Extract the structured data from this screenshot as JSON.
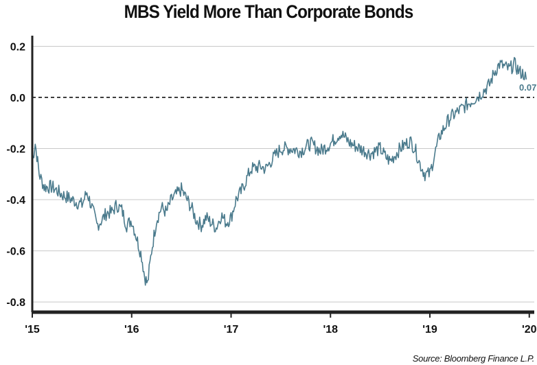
{
  "chart_data": {
    "type": "line",
    "title": "MBS Yield More Than Corporate Bonds",
    "source": "Source: Bloomberg Finance L.P.",
    "xlabel": "",
    "ylabel": "",
    "xlim": [
      2015.0,
      2020.05
    ],
    "ylim": [
      -0.84,
      0.22
    ],
    "x_ticks": [
      {
        "value": 2015,
        "label": "'15"
      },
      {
        "value": 2016,
        "label": "'16"
      },
      {
        "value": 2017,
        "label": "'17"
      },
      {
        "value": 2018,
        "label": "'18"
      },
      {
        "value": 2019,
        "label": "'19"
      },
      {
        "value": 2020,
        "label": "'20"
      }
    ],
    "y_ticks": [
      {
        "value": 0.2,
        "label": "0.2"
      },
      {
        "value": 0.0,
        "label": "0.0"
      },
      {
        "value": -0.2,
        "label": "-0.2"
      },
      {
        "value": -0.4,
        "label": "-0.4"
      },
      {
        "value": -0.6,
        "label": "-0.6"
      },
      {
        "value": -0.8,
        "label": "-0.8"
      }
    ],
    "reference_line": {
      "y": 0.0,
      "style": "dashed"
    },
    "grid": {
      "horizontal": true,
      "vertical": false
    },
    "end_label": "0.07",
    "colors": {
      "line": "#4a7a8c",
      "grid": "#c8c8c8",
      "axis": "#222222",
      "label": "#4a7a8c"
    },
    "series": [
      {
        "x": [
          2015.0,
          2015.03,
          2015.07,
          2015.12,
          2015.2,
          2015.3,
          2015.4,
          2015.5,
          2015.55,
          2015.6,
          2015.65,
          2015.7,
          2015.75,
          2015.8,
          2015.85,
          2015.9,
          2015.95,
          2016.0,
          2016.05,
          2016.1,
          2016.13,
          2016.16,
          2016.2,
          2016.25,
          2016.3,
          2016.35,
          2016.4,
          2016.5,
          2016.6,
          2016.65,
          2016.7,
          2016.75,
          2016.8,
          2016.85,
          2016.9,
          2016.95,
          2017.0,
          2017.05,
          2017.1,
          2017.2,
          2017.3,
          2017.35,
          2017.4,
          2017.5,
          2017.6,
          2017.7,
          2017.8,
          2017.9,
          2018.0,
          2018.1,
          2018.2,
          2018.3,
          2018.4,
          2018.5,
          2018.55,
          2018.6,
          2018.7,
          2018.8,
          2018.85,
          2018.9,
          2018.95,
          2019.0,
          2019.05,
          2019.1,
          2019.2,
          2019.3,
          2019.4,
          2019.5,
          2019.6,
          2019.65,
          2019.7,
          2019.75,
          2019.8,
          2019.85,
          2019.9,
          2019.95,
          2019.97
        ],
        "y": [
          -0.25,
          -0.18,
          -0.3,
          -0.35,
          -0.35,
          -0.38,
          -0.4,
          -0.42,
          -0.37,
          -0.43,
          -0.5,
          -0.48,
          -0.45,
          -0.45,
          -0.42,
          -0.44,
          -0.5,
          -0.48,
          -0.55,
          -0.62,
          -0.7,
          -0.73,
          -0.6,
          -0.48,
          -0.43,
          -0.45,
          -0.4,
          -0.36,
          -0.43,
          -0.48,
          -0.5,
          -0.47,
          -0.49,
          -0.51,
          -0.46,
          -0.49,
          -0.47,
          -0.4,
          -0.37,
          -0.28,
          -0.27,
          -0.28,
          -0.25,
          -0.2,
          -0.2,
          -0.21,
          -0.18,
          -0.21,
          -0.18,
          -0.14,
          -0.18,
          -0.2,
          -0.22,
          -0.2,
          -0.23,
          -0.25,
          -0.2,
          -0.17,
          -0.2,
          -0.26,
          -0.3,
          -0.3,
          -0.22,
          -0.15,
          -0.08,
          -0.05,
          -0.02,
          0.01,
          0.05,
          0.1,
          0.13,
          0.12,
          0.11,
          0.13,
          0.1,
          0.09,
          0.07
        ]
      }
    ]
  }
}
